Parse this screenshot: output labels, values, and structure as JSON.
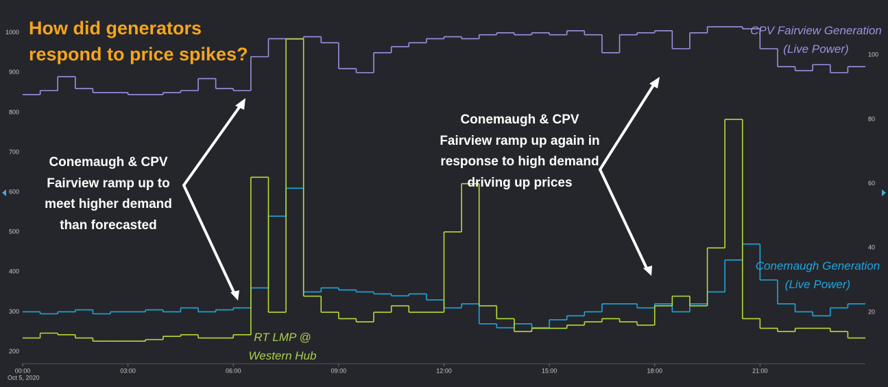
{
  "chart_data": {
    "type": "line",
    "step": true,
    "title": "How did generators respond to price spikes?",
    "date_label": "Oct 5, 2020",
    "annotations": [
      "Conemaugh & CPV Fairview ramp up to meet higher demand than forecasted",
      "Conemaugh & CPV Fairview ramp up again in response to high demand driving up prices"
    ],
    "x": [
      0,
      0.5,
      1,
      1.5,
      2,
      2.5,
      3,
      3.5,
      4,
      4.5,
      5,
      5.5,
      6,
      6.5,
      7,
      7.5,
      8,
      8.5,
      9,
      9.5,
      10,
      10.5,
      11,
      11.5,
      12,
      12.5,
      13,
      13.5,
      14,
      14.5,
      15,
      15.5,
      16,
      16.5,
      17,
      17.5,
      18,
      18.5,
      19,
      19.5,
      20,
      20.5,
      21,
      21.5,
      22,
      22.5,
      23,
      23.5
    ],
    "xlim": [
      0,
      24
    ],
    "xticks": [
      {
        "value": 0,
        "label": "00:00"
      },
      {
        "value": 3,
        "label": "03:00"
      },
      {
        "value": 6,
        "label": "06:00"
      },
      {
        "value": 9,
        "label": "09:00"
      },
      {
        "value": 12,
        "label": "12:00"
      },
      {
        "value": 15,
        "label": "15:00"
      },
      {
        "value": 18,
        "label": "18:00"
      },
      {
        "value": 21,
        "label": "21:00"
      }
    ],
    "ylim": [
      170,
      1065
    ],
    "yticks": [
      200,
      300,
      400,
      500,
      600,
      700,
      800,
      900,
      1000
    ],
    "y2lim": [
      4,
      115
    ],
    "y2ticks": [
      20,
      40,
      60,
      80,
      100
    ],
    "series": [
      {
        "name": "CPV Fairview Generation (Live Power)",
        "color": "#9d90e2",
        "values": [
          845,
          855,
          890,
          860,
          850,
          850,
          845,
          845,
          850,
          855,
          885,
          860,
          855,
          940,
          985,
          985,
          990,
          975,
          910,
          900,
          950,
          965,
          975,
          985,
          990,
          985,
          995,
          1000,
          995,
          1000,
          995,
          1005,
          995,
          950,
          995,
          1000,
          1005,
          960,
          1000,
          1015,
          1015,
          1010,
          960,
          915,
          905,
          920,
          900,
          915
        ]
      },
      {
        "name": "Conemaugh Generation (Live Power)",
        "color": "#1fa6e0",
        "values": [
          300,
          295,
          300,
          305,
          295,
          300,
          300,
          305,
          300,
          310,
          300,
          305,
          310,
          360,
          540,
          610,
          350,
          360,
          355,
          350,
          345,
          340,
          345,
          330,
          310,
          320,
          270,
          260,
          270,
          260,
          280,
          290,
          300,
          320,
          320,
          310,
          320,
          300,
          320,
          350,
          430,
          470,
          380,
          320,
          300,
          290,
          310,
          320
        ]
      },
      {
        "name": "RT LMP @ Western Hub",
        "color": "#b5dc38",
        "axis": "y2",
        "values": [
          12,
          13.5,
          13,
          12,
          11,
          11,
          11,
          11.5,
          12.5,
          13,
          12,
          12,
          13,
          62,
          20,
          105,
          25,
          20,
          18,
          17,
          20,
          22,
          20,
          20,
          45,
          60,
          22,
          18,
          14,
          15,
          15,
          16,
          17,
          18,
          17,
          16,
          22,
          25,
          22,
          40,
          80,
          18,
          15,
          14,
          15,
          15,
          14,
          12
        ]
      }
    ]
  }
}
